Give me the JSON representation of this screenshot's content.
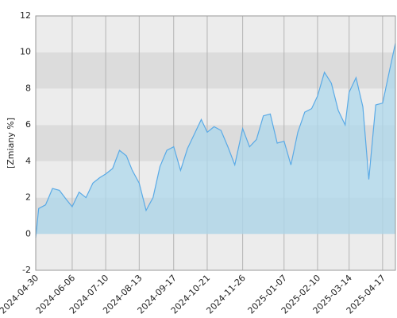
{
  "chart_data": {
    "type": "area",
    "y_label": "[Zmiany %]",
    "x": [
      "2024-04-30",
      "2024-05-03",
      "2024-05-10",
      "2024-05-17",
      "2024-05-24",
      "2024-05-31",
      "2024-06-06",
      "2024-06-13",
      "2024-06-20",
      "2024-06-27",
      "2024-07-04",
      "2024-07-10",
      "2024-07-17",
      "2024-07-24",
      "2024-07-31",
      "2024-08-06",
      "2024-08-13",
      "2024-08-20",
      "2024-08-27",
      "2024-09-03",
      "2024-09-10",
      "2024-09-17",
      "2024-09-24",
      "2024-10-01",
      "2024-10-08",
      "2024-10-15",
      "2024-10-21",
      "2024-10-28",
      "2024-11-04",
      "2024-11-11",
      "2024-11-18",
      "2024-11-26",
      "2024-12-03",
      "2024-12-10",
      "2024-12-17",
      "2024-12-24",
      "2024-12-31",
      "2025-01-07",
      "2025-01-14",
      "2025-01-21",
      "2025-01-28",
      "2025-02-04",
      "2025-02-10",
      "2025-02-17",
      "2025-02-24",
      "2025-03-03",
      "2025-03-10",
      "2025-03-14",
      "2025-03-21",
      "2025-03-28",
      "2025-04-03",
      "2025-04-10",
      "2025-04-17",
      "2025-04-24",
      "2025-04-30"
    ],
    "values": [
      -0.2,
      1.4,
      1.6,
      2.5,
      2.4,
      1.9,
      1.5,
      2.3,
      2.0,
      2.8,
      3.1,
      3.3,
      3.6,
      4.6,
      4.3,
      3.5,
      2.8,
      1.3,
      2.0,
      3.7,
      4.6,
      4.8,
      3.5,
      4.7,
      5.5,
      6.3,
      5.6,
      5.9,
      5.7,
      4.8,
      3.8,
      5.8,
      4.8,
      5.2,
      6.5,
      6.6,
      5.0,
      5.1,
      3.8,
      5.6,
      6.7,
      6.9,
      7.6,
      8.9,
      8.3,
      6.8,
      6.0,
      7.8,
      8.6,
      7.0,
      3.0,
      7.1,
      7.2,
      9.0,
      10.5
    ],
    "color": "#5aaae6",
    "fill": "#aed8ec",
    "xlim": [
      "2024-04-30",
      "2025-04-30"
    ],
    "xticks": [
      "2024-04-30",
      "2024-06-06",
      "2024-07-10",
      "2024-08-13",
      "2024-09-17",
      "2024-10-21",
      "2024-11-26",
      "2025-01-07",
      "2025-02-10",
      "2025-03-14",
      "2025-04-17"
    ],
    "ylim": [
      -2,
      12
    ],
    "yticks": [
      -2,
      0,
      2,
      4,
      6,
      8,
      10,
      12
    ],
    "grid": true
  }
}
